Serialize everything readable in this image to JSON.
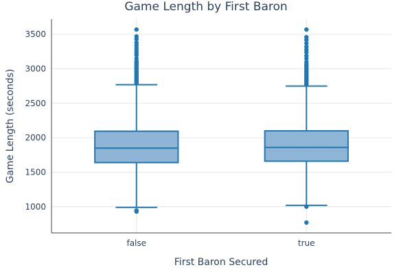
{
  "chart_data": {
    "type": "box",
    "title": "Game Length by First Baron",
    "xlabel": "First Baron Secured",
    "ylabel": "Game Length (seconds)",
    "categories": [
      "false",
      "true"
    ],
    "ylim": [
      620,
      3720
    ],
    "yticks": [
      1000,
      1500,
      2000,
      2500,
      3000,
      3500
    ],
    "grid": true,
    "legend": "none",
    "boxes": [
      {
        "category": "false",
        "lowerfence": 990,
        "q1": 1640,
        "median": 1850,
        "q3": 2095,
        "upperfence": 2770,
        "outliers": [
          930,
          945,
          2790,
          2810,
          2830,
          2850,
          2870,
          2890,
          2910,
          2930,
          2950,
          2970,
          2990,
          3010,
          3030,
          3050,
          3070,
          3090,
          3110,
          3150,
          3200,
          3230,
          3260,
          3300,
          3340,
          3380,
          3430,
          3470,
          3570
        ]
      },
      {
        "category": "true",
        "lowerfence": 1020,
        "q1": 1660,
        "median": 1860,
        "q3": 2100,
        "upperfence": 2750,
        "outliers": [
          770,
          1000,
          2770,
          2790,
          2810,
          2830,
          2850,
          2870,
          2890,
          2910,
          2930,
          2950,
          2970,
          2990,
          3010,
          3030,
          3050,
          3070,
          3100,
          3150,
          3190,
          3240,
          3280,
          3320,
          3370,
          3420,
          3460,
          3570
        ]
      }
    ],
    "colors": {
      "box_fill": "#8fb5d6",
      "box_stroke": "#1f77b4",
      "point": "#1f77b4"
    }
  }
}
